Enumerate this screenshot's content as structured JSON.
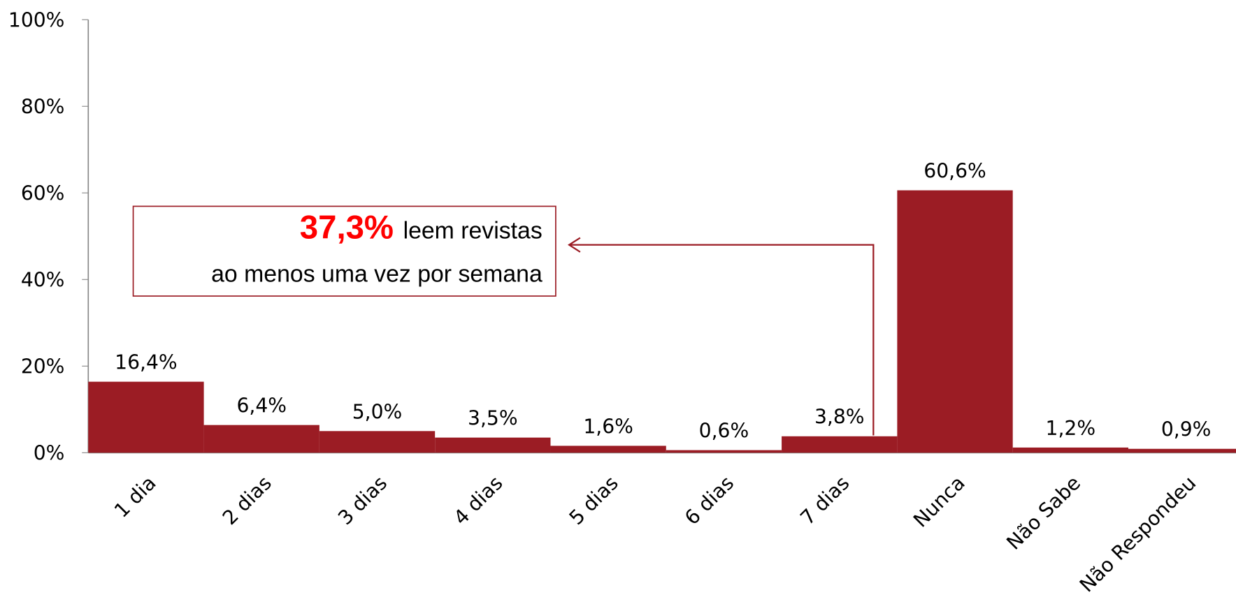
{
  "chart_data": {
    "type": "bar",
    "categories": [
      "1 dia",
      "2 dias",
      "3 dias",
      "4 dias",
      "5 dias",
      "6 dias",
      "7 dias",
      "Nunca",
      "Não Sabe",
      "Não Respondeu"
    ],
    "values": [
      16.4,
      6.4,
      5.0,
      3.5,
      1.6,
      0.6,
      3.8,
      60.6,
      1.2,
      0.9
    ],
    "value_labels": [
      "16,4%",
      "6,4%",
      "5,0%",
      "3,5%",
      "1,6%",
      "0,6%",
      "3,8%",
      "60,6%",
      "1,2%",
      "0,9%"
    ],
    "color": "#9b1c24",
    "ylim": [
      0,
      100
    ],
    "yticks": [
      {
        "value": 0,
        "label": "0%"
      },
      {
        "value": 20,
        "label": "20%"
      },
      {
        "value": 40,
        "label": "40%"
      },
      {
        "value": 60,
        "label": "60%"
      },
      {
        "value": 80,
        "label": "80%"
      },
      {
        "value": 100,
        "label": "100%"
      }
    ],
    "annotation": {
      "highlight": "37,3%",
      "line1": "leem revistas",
      "line2": "ao menos uma vez por semana"
    }
  }
}
